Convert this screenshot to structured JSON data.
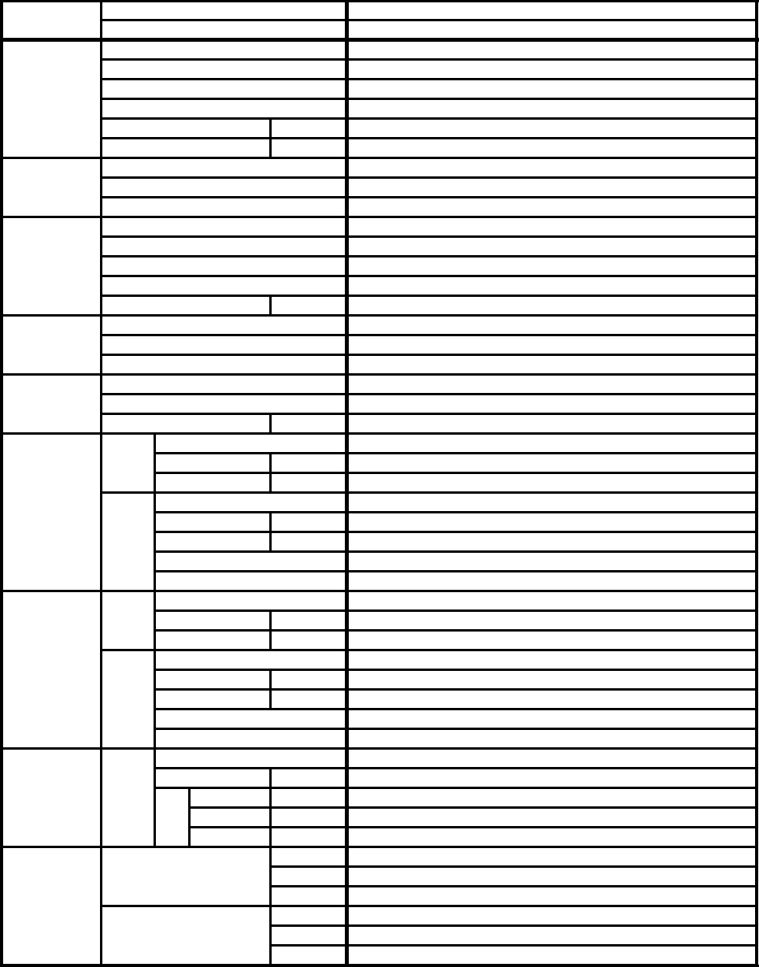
{
  "table": {
    "border_color": "#000000",
    "background": "#ffffff",
    "cells_text": ""
  }
}
